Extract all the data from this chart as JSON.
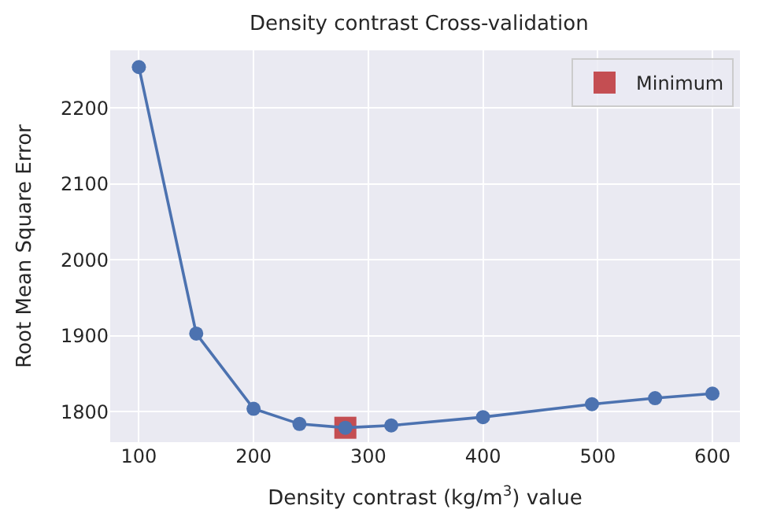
{
  "chart_data": {
    "type": "line",
    "title": "Density contrast Cross-validation",
    "xlabel": "Density contrast (kg/m$^{3}$) value",
    "ylabel": "Root Mean Square Error",
    "x": [
      100,
      150,
      200,
      240,
      280,
      320,
      400,
      495,
      550,
      600
    ],
    "series": [
      {
        "color": "#4c72b0",
        "marker": "circle",
        "values": [
          2254,
          1903,
          1804,
          1784,
          1779,
          1782,
          1793,
          1810,
          1818,
          1824
        ]
      },
      {
        "type": "scatter",
        "name": "Minimum",
        "color": "#c44e52",
        "marker": "square",
        "x": [
          280
        ],
        "values": [
          1779
        ]
      }
    ],
    "xlim": [
      75,
      624
    ],
    "ylim": [
      1760,
      2276
    ],
    "xticks": [
      100,
      200,
      300,
      400,
      500,
      600
    ],
    "yticks": [
      1800,
      1900,
      2000,
      2100,
      2200
    ],
    "grid": true,
    "legend": "top right"
  }
}
